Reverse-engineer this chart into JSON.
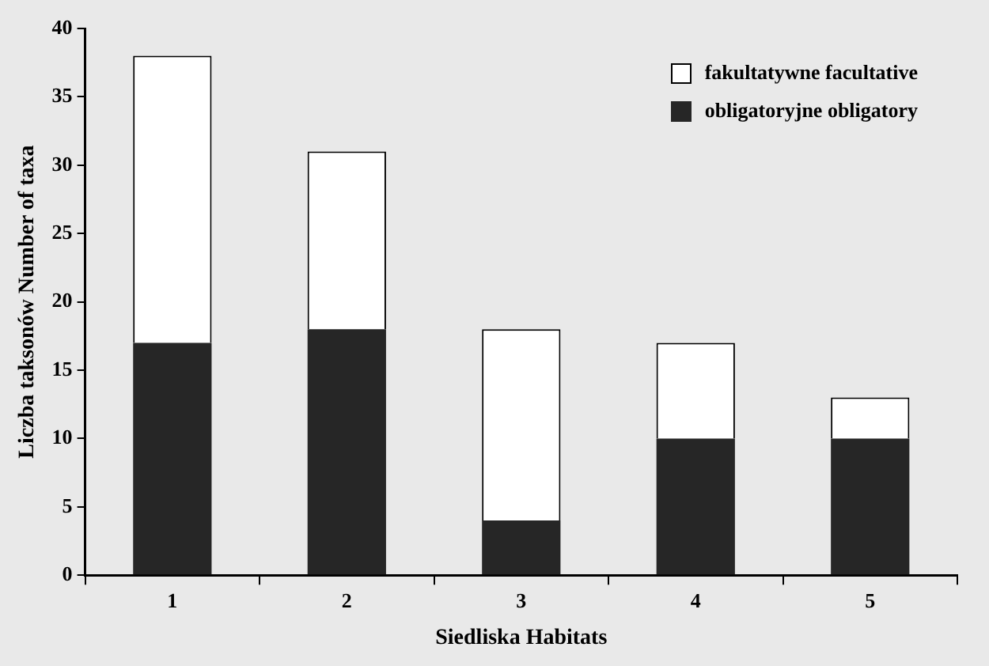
{
  "chart_data": {
    "type": "bar",
    "stacked": true,
    "xlabel": "Siedliska Habitats",
    "ylabel": "Liczba taksonów Number of taxa",
    "categories": [
      "1",
      "2",
      "3",
      "4",
      "5"
    ],
    "series": [
      {
        "name": "obligatoryjne obligatory",
        "color": "#262626",
        "values": [
          17,
          18,
          4,
          10,
          10
        ]
      },
      {
        "name": "fakultatywne facultative",
        "color": "#ffffff",
        "values": [
          21,
          13,
          14,
          7,
          3
        ]
      }
    ],
    "ylim": [
      0,
      40
    ],
    "yticks": [
      0,
      5,
      10,
      15,
      20,
      25,
      30,
      35,
      40
    ],
    "grid": false,
    "legend": "top right"
  }
}
